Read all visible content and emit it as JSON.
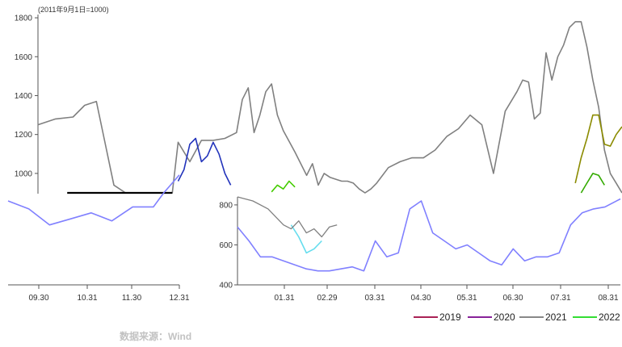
{
  "chart_data": [
    {
      "type": "line",
      "note": "(2011年9月1日=1000)",
      "y_ticks": [
        "1800",
        "1600",
        "1400",
        "1200",
        "1000"
      ],
      "ylim": [
        900,
        1850
      ],
      "series": [
        {
          "key": "gray_main",
          "color": "#808080",
          "x": [
            0,
            3,
            6,
            8,
            10,
            13,
            15,
            17,
            19,
            21,
            22,
            23,
            24,
            26,
            28,
            30,
            32,
            34,
            35,
            36,
            37,
            38,
            39,
            40,
            41,
            42,
            44,
            46,
            47,
            48,
            49,
            50,
            51,
            52,
            53,
            54,
            55,
            56,
            57,
            58,
            60,
            62,
            64,
            66,
            68,
            70,
            72,
            74,
            76,
            78,
            80,
            82,
            83,
            84,
            85,
            86,
            87,
            88,
            89,
            90,
            91,
            92,
            93,
            94,
            95,
            96,
            97,
            98,
            99,
            100
          ],
          "y": [
            1250,
            1280,
            1290,
            1350,
            1370,
            940,
            900,
            900,
            900,
            900,
            900,
            900,
            1160,
            1060,
            1170,
            1170,
            1180,
            1210,
            1380,
            1440,
            1210,
            1300,
            1420,
            1460,
            1300,
            1220,
            1110,
            990,
            1050,
            940,
            1000,
            980,
            970,
            960,
            960,
            950,
            920,
            900,
            920,
            950,
            1030,
            1060,
            1080,
            1080,
            1120,
            1190,
            1230,
            1300,
            1250,
            1000,
            1320,
            1420,
            1480,
            1470,
            1280,
            1310,
            1620,
            1480,
            1600,
            1660,
            1750,
            1780,
            1780,
            1650,
            1480,
            1340,
            1120,
            1000,
            950,
            900
          ]
        },
        {
          "key": "blue",
          "color": "#2233bb",
          "x": [
            24,
            25,
            26,
            27,
            28,
            29,
            30,
            31,
            32,
            33
          ],
          "y": [
            960,
            1020,
            1150,
            1180,
            1060,
            1090,
            1160,
            1100,
            1000,
            940
          ]
        },
        {
          "key": "black",
          "color": "#000000",
          "x": [
            5,
            8,
            10,
            12,
            14,
            16,
            18,
            20,
            22,
            23
          ],
          "y": [
            900,
            900,
            900,
            900,
            900,
            900,
            900,
            900,
            900,
            900
          ]
        },
        {
          "key": "olive",
          "color": "#8b8b00",
          "x": [
            92,
            93,
            94,
            95,
            96,
            97,
            98,
            99,
            100
          ],
          "y": [
            950,
            1080,
            1180,
            1300,
            1300,
            1150,
            1140,
            1200,
            1240
          ]
        },
        {
          "key": "green",
          "color": "#33aa00",
          "x": [
            93,
            94,
            95,
            96,
            97
          ],
          "y": [
            900,
            950,
            1000,
            990,
            940
          ]
        },
        {
          "key": "green_2022",
          "color": "#44cc00",
          "x": [
            40,
            41,
            42,
            43,
            44
          ],
          "y": [
            905,
            940,
            920,
            960,
            930
          ]
        }
      ]
    },
    {
      "type": "line",
      "x_ticks": [
        "09.30",
        "10.31",
        "11.30",
        "12.31"
      ],
      "series": [
        {
          "key": "lavender_left",
          "color": "#8080ff",
          "x": [
            0,
            4,
            8,
            12,
            16,
            20,
            24,
            28,
            30,
            33
          ],
          "y": [
            820,
            780,
            700,
            730,
            760,
            720,
            790,
            790,
            860,
            950
          ]
        }
      ]
    },
    {
      "type": "line",
      "y_ticks": [
        "800",
        "600",
        "400"
      ],
      "ylim": [
        400,
        840
      ],
      "x_ticks": [
        "01.31",
        "02.29",
        "03.31",
        "04.30",
        "05.31",
        "06.30",
        "07.31",
        "08.31"
      ],
      "series": [
        {
          "key": "lavender_right",
          "color": "#8080ff",
          "x": [
            0,
            3,
            6,
            9,
            12,
            15,
            18,
            21,
            24,
            27,
            30,
            33,
            36,
            39,
            42,
            45,
            48,
            51,
            54,
            57,
            60,
            63,
            66,
            69,
            72,
            75,
            78,
            81,
            84,
            87,
            90,
            93,
            96,
            100
          ],
          "y": [
            690,
            620,
            540,
            540,
            520,
            500,
            480,
            470,
            470,
            480,
            490,
            470,
            620,
            540,
            560,
            780,
            820,
            660,
            620,
            580,
            600,
            560,
            520,
            500,
            580,
            520,
            540,
            540,
            560,
            700,
            760,
            780,
            790,
            830
          ]
        },
        {
          "key": "cyan_right",
          "color": "#66ddee",
          "x": [
            14,
            16,
            18,
            20,
            22
          ],
          "y": [
            700,
            640,
            560,
            580,
            620
          ]
        },
        {
          "key": "gray_right",
          "color": "#808080",
          "x": [
            0,
            4,
            8,
            10,
            12,
            14,
            16,
            18,
            20,
            22,
            24,
            26
          ],
          "y": [
            840,
            820,
            780,
            740,
            700,
            680,
            720,
            660,
            680,
            640,
            690,
            700
          ]
        }
      ],
      "legend": {
        "position": "bottom-right",
        "entries": [
          {
            "label": "2019",
            "color": "#aa2255"
          },
          {
            "label": "2020",
            "color": "#882299"
          },
          {
            "label": "2021",
            "color": "#888888"
          },
          {
            "label": "2022",
            "color": "#33dd33"
          }
        ]
      }
    }
  ],
  "source": "数据来源：Wind"
}
